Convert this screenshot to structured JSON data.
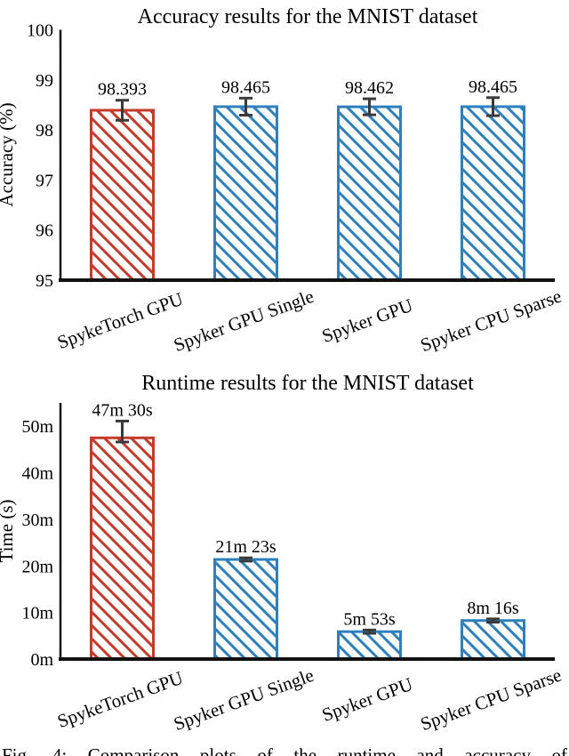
{
  "figure": {
    "caption": "Fig. 4: Comparison plots of the runtime and accuracy of"
  },
  "colors": {
    "red": "#C43B2C",
    "blue": "#2E80BD",
    "error_bar": "#3A3A3A",
    "axis": "#111111",
    "text": "#000000",
    "background": "#FFFFFF"
  },
  "chart_data": [
    {
      "type": "bar",
      "title": "Accuracy results for the MNIST dataset",
      "ylabel": "Accuracy (%)",
      "xlabel": "",
      "categories": [
        "SpykeTorch GPU",
        "Spyker GPU Single",
        "Spyker GPU",
        "Spyker CPU Sparse"
      ],
      "values": [
        98.393,
        98.465,
        98.462,
        98.465
      ],
      "value_labels": [
        "98.393",
        "98.465",
        "98.462",
        "98.465"
      ],
      "errors_plus": [
        0.2,
        0.17,
        0.16,
        0.18
      ],
      "errors_minus": [
        0.2,
        0.17,
        0.16,
        0.18
      ],
      "ylim": [
        95,
        100
      ],
      "yticks": [
        95,
        96,
        97,
        98,
        99,
        100
      ],
      "ytick_labels": [
        "95",
        "96",
        "97",
        "98",
        "99",
        "100"
      ],
      "bar_colors": [
        "red",
        "blue",
        "blue",
        "blue"
      ],
      "hatch": "\\",
      "grid": false,
      "legend": null
    },
    {
      "type": "bar",
      "title": "Runtime results for the MNIST dataset",
      "ylabel": "Time (s)",
      "xlabel": "",
      "categories": [
        "SpykeTorch GPU",
        "Spyker GPU Single",
        "Spyker GPU",
        "Spyker CPU Sparse"
      ],
      "values": [
        47.5,
        21.383,
        5.883,
        8.267
      ],
      "value_labels": [
        "47m 30s",
        "21m 23s",
        "5m 53s",
        "8m 16s"
      ],
      "errors_plus": [
        3.6,
        0.35,
        0.35,
        0.35
      ],
      "errors_minus": [
        0.9,
        0.35,
        0.35,
        0.35
      ],
      "ylim": [
        0,
        55
      ],
      "yticks": [
        0,
        10,
        20,
        30,
        40,
        50
      ],
      "ytick_labels": [
        "0m",
        "10m",
        "20m",
        "30m",
        "40m",
        "50m"
      ],
      "bar_colors": [
        "red",
        "blue",
        "blue",
        "blue"
      ],
      "hatch": "\\",
      "grid": false,
      "legend": null
    }
  ]
}
